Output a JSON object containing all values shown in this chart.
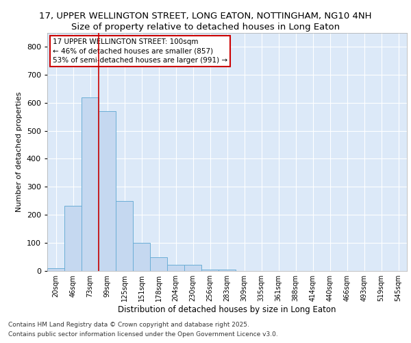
{
  "title1": "17, UPPER WELLINGTON STREET, LONG EATON, NOTTINGHAM, NG10 4NH",
  "title2": "Size of property relative to detached houses in Long Eaton",
  "xlabel": "Distribution of detached houses by size in Long Eaton",
  "ylabel": "Number of detached properties",
  "categories": [
    "20sqm",
    "46sqm",
    "73sqm",
    "99sqm",
    "125sqm",
    "151sqm",
    "178sqm",
    "204sqm",
    "230sqm",
    "256sqm",
    "283sqm",
    "309sqm",
    "335sqm",
    "361sqm",
    "388sqm",
    "414sqm",
    "440sqm",
    "466sqm",
    "493sqm",
    "519sqm",
    "545sqm"
  ],
  "values": [
    10,
    233,
    620,
    570,
    250,
    100,
    48,
    22,
    22,
    5,
    5,
    0,
    0,
    0,
    0,
    0,
    0,
    0,
    0,
    0,
    0
  ],
  "bar_color": "#c5d8f0",
  "bar_edge_color": "#6baed6",
  "vline_x_index": 3,
  "vline_color": "#cc0000",
  "ylim": [
    0,
    850
  ],
  "yticks": [
    0,
    100,
    200,
    300,
    400,
    500,
    600,
    700,
    800
  ],
  "annotation_text": "17 UPPER WELLINGTON STREET: 100sqm\n← 46% of detached houses are smaller (857)\n53% of semi-detached houses are larger (991) →",
  "annotation_box_color": "#ffffff",
  "annotation_box_edge": "#cc0000",
  "footer1": "Contains HM Land Registry data © Crown copyright and database right 2025.",
  "footer2": "Contains public sector information licensed under the Open Government Licence v3.0.",
  "bg_color": "#dce9f8",
  "grid_color": "#ffffff",
  "title1_fontsize": 9.5,
  "title2_fontsize": 9.5
}
